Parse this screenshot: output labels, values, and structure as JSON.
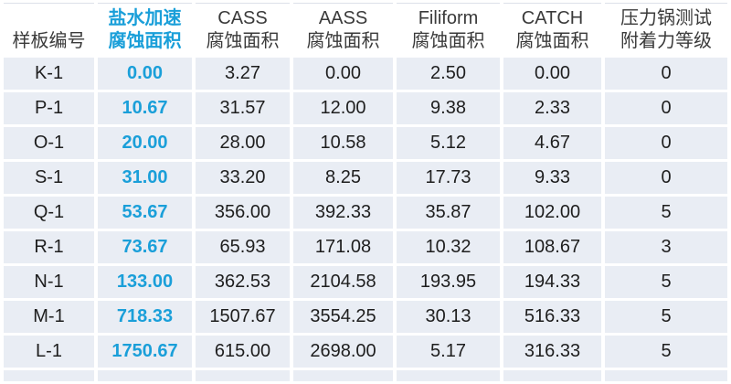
{
  "colors": {
    "accent": "#1A9FD9",
    "row_background": "#E9EDF4",
    "header_text": "#3A3A3A",
    "data_text": "#1E1E1E",
    "page_background": "#FFFFFF"
  },
  "chart_data": {
    "type": "table",
    "title": "",
    "columns": [
      {
        "id": "sample-id",
        "accent": false,
        "lines": [
          "样板编号"
        ]
      },
      {
        "id": "salt-accelerated",
        "accent": true,
        "lines": [
          "盐水加速",
          "腐蚀面积"
        ]
      },
      {
        "id": "cass",
        "accent": false,
        "lines": [
          "CASS",
          "腐蚀面积"
        ]
      },
      {
        "id": "aass",
        "accent": false,
        "lines": [
          "AASS",
          "腐蚀面积"
        ]
      },
      {
        "id": "filiform",
        "accent": false,
        "lines": [
          "Filiform",
          "腐蚀面积"
        ]
      },
      {
        "id": "catch",
        "accent": false,
        "lines": [
          "CATCH",
          "腐蚀面积"
        ]
      },
      {
        "id": "pressure-cooker",
        "accent": false,
        "lines": [
          "压力锅测试",
          "附着力等级"
        ]
      }
    ],
    "rows": [
      [
        "K-1",
        "0.00",
        "3.27",
        "0.00",
        "2.50",
        "0.00",
        "0"
      ],
      [
        "P-1",
        "10.67",
        "31.57",
        "12.00",
        "9.38",
        "2.33",
        "0"
      ],
      [
        "O-1",
        "20.00",
        "28.00",
        "10.58",
        "5.12",
        "4.67",
        "0"
      ],
      [
        "S-1",
        "31.00",
        "33.20",
        "8.25",
        "17.73",
        "9.33",
        "0"
      ],
      [
        "Q-1",
        "53.67",
        "356.00",
        "392.33",
        "35.87",
        "102.00",
        "5"
      ],
      [
        "R-1",
        "73.67",
        "65.93",
        "171.08",
        "10.32",
        "108.67",
        "3"
      ],
      [
        "N-1",
        "133.00",
        "362.53",
        "2104.58",
        "193.95",
        "194.33",
        "5"
      ],
      [
        "M-1",
        "718.33",
        "1507.67",
        "3554.25",
        "30.13",
        "516.33",
        "5"
      ],
      [
        "L-1",
        "1750.67",
        "615.00",
        "2698.00",
        "5.17",
        "316.33",
        "5"
      ]
    ]
  }
}
